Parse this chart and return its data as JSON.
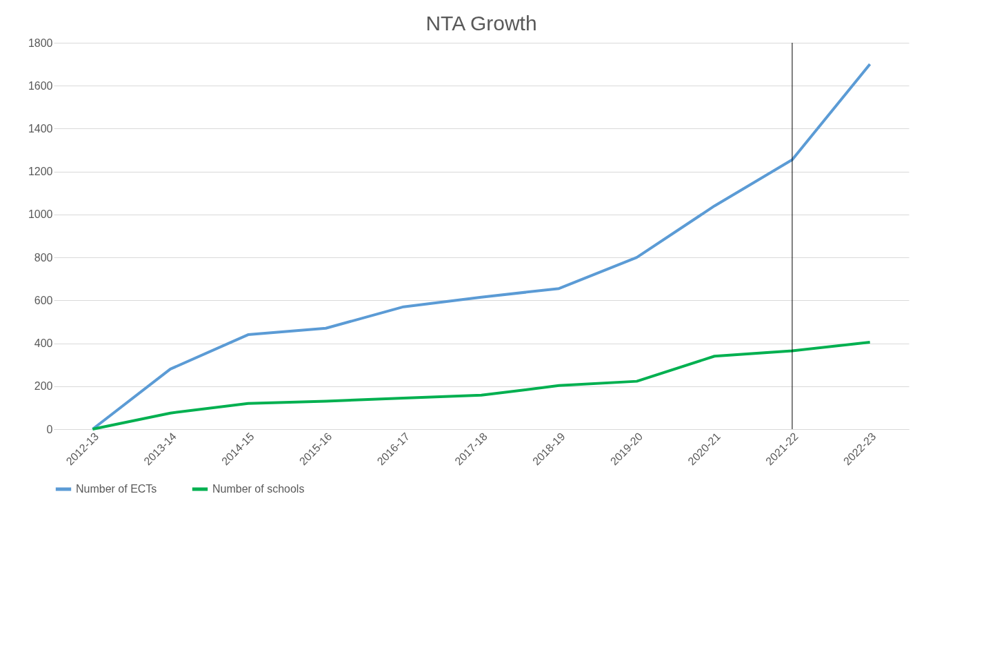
{
  "chart_data": {
    "type": "line",
    "title": "NTA Growth",
    "categories": [
      "2012-13",
      "2013-14",
      "2014-15",
      "2015-16",
      "2016-17",
      "2017-18",
      "2018-19",
      "2019-20",
      "2020-21",
      "2021-22",
      "2022-23"
    ],
    "series": [
      {
        "name": "Number of ECTs",
        "color": "#5b9bd5",
        "values": [
          0,
          280,
          440,
          470,
          570,
          615,
          655,
          800,
          1040,
          1255,
          1700
        ]
      },
      {
        "name": "Number of schools",
        "color": "#00b050",
        "values": [
          0,
          75,
          120,
          130,
          145,
          158,
          203,
          223,
          340,
          365,
          405
        ]
      }
    ],
    "ylim": [
      0,
      1800
    ],
    "yticks": [
      0,
      200,
      400,
      600,
      800,
      1000,
      1200,
      1400,
      1600,
      1800
    ],
    "grid": "y",
    "legend": "bottom",
    "marker": "none",
    "line_style": "solid",
    "ref_lines": [
      {
        "axis": "x",
        "value": "2021-22",
        "color": "#000000"
      }
    ]
  }
}
